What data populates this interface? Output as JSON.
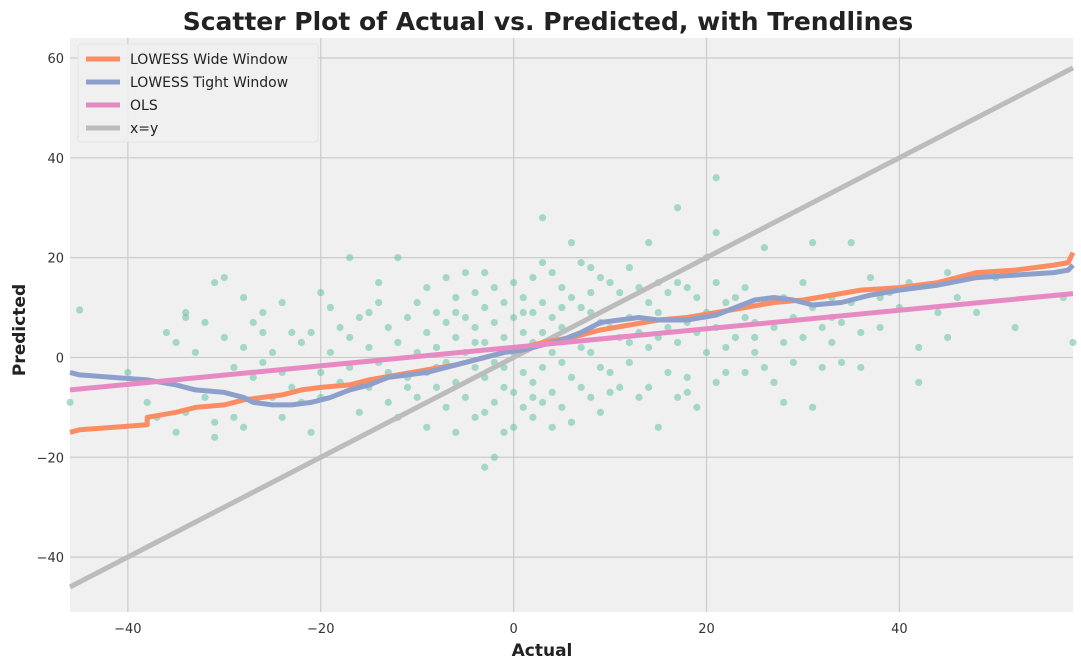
{
  "chart_data": {
    "type": "scatter",
    "title": "Scatter Plot of Actual vs. Predicted, with Trendlines",
    "xlabel": "Actual",
    "ylabel": "Predicted",
    "xlim": [
      -46,
      58
    ],
    "ylim": [
      -51,
      64
    ],
    "x_ticks": [
      -40,
      -20,
      0,
      20,
      40
    ],
    "y_ticks": [
      -40,
      -20,
      0,
      20,
      40,
      60
    ],
    "x_tick_labels": [
      "−40",
      "−20",
      "0",
      "20",
      "40"
    ],
    "y_tick_labels": [
      "−40",
      "−20",
      "0",
      "20",
      "40",
      "60"
    ],
    "grid": true,
    "background": "#f0f0f0",
    "legend_position": "upper-left",
    "scatter": {
      "color": "#66c2a5",
      "points": [
        [
          -45,
          9.5
        ],
        [
          -46,
          -9
        ],
        [
          -40,
          -3
        ],
        [
          -38,
          -9
        ],
        [
          -37,
          -12
        ],
        [
          -35,
          3
        ],
        [
          -35,
          -15
        ],
        [
          -34,
          9
        ],
        [
          -34,
          8
        ],
        [
          -34,
          -11
        ],
        [
          -32,
          7
        ],
        [
          -32,
          -8
        ],
        [
          -31,
          15
        ],
        [
          -31,
          -13
        ],
        [
          -31,
          -16
        ],
        [
          -30,
          16
        ],
        [
          -30,
          4
        ],
        [
          -29,
          -2
        ],
        [
          -29,
          -12
        ],
        [
          -28,
          12
        ],
        [
          -28,
          2
        ],
        [
          -28,
          -14
        ],
        [
          -27,
          7
        ],
        [
          -27,
          -4
        ],
        [
          -26,
          9
        ],
        [
          -26,
          -1
        ],
        [
          -25,
          1
        ],
        [
          -25,
          -8
        ],
        [
          -24,
          11
        ],
        [
          -24,
          -12
        ],
        [
          -23,
          5
        ],
        [
          -23,
          -6
        ],
        [
          -22,
          3
        ],
        [
          -22,
          -9
        ],
        [
          -21,
          5
        ],
        [
          -21,
          -15
        ],
        [
          -20,
          13
        ],
        [
          -20,
          -3
        ],
        [
          -20,
          -8
        ],
        [
          -19,
          10
        ],
        [
          -19,
          1
        ],
        [
          -18,
          6
        ],
        [
          -18,
          -5
        ],
        [
          -17,
          20
        ],
        [
          -17,
          4
        ],
        [
          -17,
          -2
        ],
        [
          -16,
          8
        ],
        [
          -16,
          -11
        ],
        [
          -15,
          2
        ],
        [
          -15,
          -6
        ],
        [
          -14,
          15
        ],
        [
          -14,
          11
        ],
        [
          -14,
          -1
        ],
        [
          -13,
          6
        ],
        [
          -13,
          -9
        ],
        [
          -12,
          20
        ],
        [
          -12,
          3
        ],
        [
          -12,
          -12
        ],
        [
          -11,
          8
        ],
        [
          -11,
          -4
        ],
        [
          -10,
          11
        ],
        [
          -10,
          1
        ],
        [
          -10,
          -8
        ],
        [
          -9,
          14
        ],
        [
          -9,
          5
        ],
        [
          -9,
          -3
        ],
        [
          -9,
          -14
        ],
        [
          -8,
          9
        ],
        [
          -8,
          2
        ],
        [
          -8,
          -6
        ],
        [
          -7,
          16
        ],
        [
          -7,
          7
        ],
        [
          -7,
          -1
        ],
        [
          -7,
          -10
        ],
        [
          -6,
          12
        ],
        [
          -6,
          4
        ],
        [
          -6,
          -5
        ],
        [
          -6,
          -15
        ],
        [
          -5,
          17
        ],
        [
          -5,
          8
        ],
        [
          -5,
          1
        ],
        [
          -5,
          -8
        ],
        [
          -4,
          13
        ],
        [
          -4,
          6
        ],
        [
          -4,
          -2
        ],
        [
          -4,
          -12
        ],
        [
          -3,
          17
        ],
        [
          -3,
          10
        ],
        [
          -3,
          3
        ],
        [
          -3,
          -4
        ],
        [
          -3,
          -11
        ],
        [
          -3,
          -22
        ],
        [
          -2,
          14
        ],
        [
          -2,
          7
        ],
        [
          -2,
          -1
        ],
        [
          -2,
          -9
        ],
        [
          -2,
          -20
        ],
        [
          -1,
          11
        ],
        [
          -1,
          4
        ],
        [
          -1,
          -6
        ],
        [
          -1,
          -15
        ],
        [
          0,
          15
        ],
        [
          0,
          8
        ],
        [
          0,
          1
        ],
        [
          0,
          -7
        ],
        [
          0,
          -14
        ],
        [
          1,
          12
        ],
        [
          1,
          5
        ],
        [
          1,
          -3
        ],
        [
          1,
          -10
        ],
        [
          2,
          16
        ],
        [
          2,
          9
        ],
        [
          2,
          3
        ],
        [
          2,
          -5
        ],
        [
          2,
          -12
        ],
        [
          3,
          28
        ],
        [
          3,
          19
        ],
        [
          3,
          11
        ],
        [
          3,
          5
        ],
        [
          3,
          -2
        ],
        [
          3,
          -9
        ],
        [
          4,
          17
        ],
        [
          4,
          8
        ],
        [
          4,
          1
        ],
        [
          4,
          -7
        ],
        [
          4,
          -14
        ],
        [
          5,
          14
        ],
        [
          5,
          6
        ],
        [
          5,
          -1
        ],
        [
          5,
          -10
        ],
        [
          6,
          23
        ],
        [
          6,
          12
        ],
        [
          6,
          4
        ],
        [
          6,
          -4
        ],
        [
          6,
          -13
        ],
        [
          7,
          19
        ],
        [
          7,
          10
        ],
        [
          7,
          2
        ],
        [
          7,
          -6
        ],
        [
          8,
          18
        ],
        [
          8,
          9
        ],
        [
          8,
          1
        ],
        [
          8,
          -8
        ],
        [
          9,
          16
        ],
        [
          9,
          7
        ],
        [
          9,
          -2
        ],
        [
          9,
          -11
        ],
        [
          10,
          15
        ],
        [
          10,
          6
        ],
        [
          10,
          -3
        ],
        [
          11,
          13
        ],
        [
          11,
          4
        ],
        [
          11,
          -6
        ],
        [
          12,
          18
        ],
        [
          12,
          8
        ],
        [
          12,
          -1
        ],
        [
          13,
          14
        ],
        [
          13,
          5
        ],
        [
          13,
          -8
        ],
        [
          14,
          23
        ],
        [
          14,
          11
        ],
        [
          14,
          2
        ],
        [
          14,
          -6
        ],
        [
          15,
          15
        ],
        [
          15,
          4
        ],
        [
          15,
          -14
        ],
        [
          16,
          13
        ],
        [
          16,
          6
        ],
        [
          16,
          -3
        ],
        [
          17,
          30
        ],
        [
          17,
          15
        ],
        [
          17,
          3
        ],
        [
          17,
          -8
        ],
        [
          18,
          14
        ],
        [
          18,
          7
        ],
        [
          18,
          -4
        ],
        [
          19,
          12
        ],
        [
          19,
          5
        ],
        [
          19,
          -10
        ],
        [
          20,
          20
        ],
        [
          20,
          9
        ],
        [
          20,
          1
        ],
        [
          21,
          36
        ],
        [
          21,
          25
        ],
        [
          21,
          15
        ],
        [
          21,
          6
        ],
        [
          21,
          -5
        ],
        [
          22,
          11
        ],
        [
          22,
          2
        ],
        [
          23,
          12
        ],
        [
          23,
          4
        ],
        [
          24,
          14
        ],
        [
          24,
          8
        ],
        [
          24,
          -3
        ],
        [
          25,
          7
        ],
        [
          25,
          1
        ],
        [
          26,
          22
        ],
        [
          26,
          11
        ],
        [
          26,
          -2
        ],
        [
          27,
          6
        ],
        [
          27,
          -5
        ],
        [
          28,
          12
        ],
        [
          28,
          -9
        ],
        [
          29,
          8
        ],
        [
          29,
          -1
        ],
        [
          30,
          15
        ],
        [
          30,
          4
        ],
        [
          31,
          23
        ],
        [
          31,
          10
        ],
        [
          31,
          -10
        ],
        [
          32,
          6
        ],
        [
          32,
          -2
        ],
        [
          33,
          12
        ],
        [
          33,
          3
        ],
        [
          34,
          7
        ],
        [
          34,
          -1
        ],
        [
          35,
          23
        ],
        [
          35,
          11
        ],
        [
          36,
          5
        ],
        [
          36,
          -2
        ],
        [
          37,
          16
        ],
        [
          38,
          12
        ],
        [
          38,
          6
        ],
        [
          40,
          10
        ],
        [
          41,
          15
        ],
        [
          42,
          2
        ],
        [
          42,
          -5
        ],
        [
          44,
          9
        ],
        [
          45,
          17
        ],
        [
          45,
          4
        ],
        [
          46,
          12
        ],
        [
          48,
          9
        ],
        [
          50,
          16
        ],
        [
          52,
          6
        ],
        [
          57,
          12
        ],
        [
          58,
          3
        ],
        [
          -36,
          5
        ],
        [
          -33,
          1
        ],
        [
          -26,
          5
        ],
        [
          -24,
          -3
        ],
        [
          -15,
          9
        ],
        [
          -13,
          -3
        ],
        [
          -11,
          -6
        ],
        [
          -8,
          -2
        ],
        [
          -6,
          9
        ],
        [
          -4,
          3
        ],
        [
          -1,
          -2
        ],
        [
          1,
          9
        ],
        [
          2,
          -8
        ],
        [
          5,
          10
        ],
        [
          8,
          13
        ],
        [
          10,
          -7
        ],
        [
          12,
          3
        ],
        [
          15,
          9
        ],
        [
          18,
          -7
        ],
        [
          22,
          -3
        ],
        [
          25,
          4
        ],
        [
          28,
          3
        ],
        [
          33,
          8
        ],
        [
          39,
          13
        ]
      ]
    },
    "series": [
      {
        "name": "LOWESS Wide Window",
        "color": "#fc8d62",
        "points": [
          [
            -46,
            -15
          ],
          [
            -45,
            -14.5
          ],
          [
            -38,
            -13.5
          ],
          [
            -38,
            -12
          ],
          [
            -35,
            -11
          ],
          [
            -33,
            -10
          ],
          [
            -30,
            -9.5
          ],
          [
            -28,
            -8.5
          ],
          [
            -26,
            -8
          ],
          [
            -24,
            -7.5
          ],
          [
            -22,
            -6.5
          ],
          [
            -20,
            -6
          ],
          [
            -17,
            -5.5
          ],
          [
            -15,
            -4.5
          ],
          [
            -12,
            -3.5
          ],
          [
            -9,
            -2.5
          ],
          [
            -6,
            -1.5
          ],
          [
            -3,
            0
          ],
          [
            0,
            1.5
          ],
          [
            3,
            3
          ],
          [
            6,
            4
          ],
          [
            9,
            5.5
          ],
          [
            12,
            6.5
          ],
          [
            15,
            7.5
          ],
          [
            18,
            8
          ],
          [
            21,
            9
          ],
          [
            24,
            10
          ],
          [
            27,
            11
          ],
          [
            30,
            11.5
          ],
          [
            33,
            12.5
          ],
          [
            36,
            13.5
          ],
          [
            40,
            14
          ],
          [
            44,
            15
          ],
          [
            48,
            17
          ],
          [
            52,
            17.5
          ],
          [
            56,
            18.5
          ],
          [
            57.5,
            19
          ],
          [
            58,
            21
          ]
        ]
      },
      {
        "name": "LOWESS Tight Window",
        "color": "#8da0cb",
        "points": [
          [
            -46,
            -3
          ],
          [
            -45,
            -3.5
          ],
          [
            -38,
            -4.5
          ],
          [
            -35,
            -5.5
          ],
          [
            -33,
            -6.5
          ],
          [
            -30,
            -7
          ],
          [
            -28,
            -8
          ],
          [
            -27,
            -9
          ],
          [
            -25,
            -9.5
          ],
          [
            -23,
            -9.5
          ],
          [
            -21,
            -9
          ],
          [
            -19,
            -8
          ],
          [
            -17,
            -6.5
          ],
          [
            -15,
            -5.5
          ],
          [
            -13,
            -4
          ],
          [
            -11,
            -3.5
          ],
          [
            -9,
            -3
          ],
          [
            -7,
            -2
          ],
          [
            -5,
            -1
          ],
          [
            -3,
            0
          ],
          [
            -1,
            1
          ],
          [
            1,
            1.5
          ],
          [
            3,
            2.5
          ],
          [
            5,
            3.5
          ],
          [
            7,
            5
          ],
          [
            9,
            7
          ],
          [
            11,
            7.5
          ],
          [
            13,
            8
          ],
          [
            15,
            7.5
          ],
          [
            18,
            7.5
          ],
          [
            21,
            8.5
          ],
          [
            23,
            10
          ],
          [
            25,
            11.5
          ],
          [
            27,
            12
          ],
          [
            29,
            11.5
          ],
          [
            31,
            10.5
          ],
          [
            34,
            11
          ],
          [
            37,
            12.5
          ],
          [
            40,
            13.5
          ],
          [
            44,
            14.5
          ],
          [
            48,
            16
          ],
          [
            52,
            16.5
          ],
          [
            56,
            17
          ],
          [
            57.5,
            17.5
          ],
          [
            58,
            18.5
          ]
        ]
      },
      {
        "name": "OLS",
        "color": "#e78ac3",
        "points": [
          [
            -46,
            -6.5
          ],
          [
            58,
            12.8
          ]
        ]
      },
      {
        "name": "x=y",
        "color": "#bcbcbc",
        "points": [
          [
            -46,
            -46
          ],
          [
            58,
            58
          ]
        ]
      }
    ]
  }
}
